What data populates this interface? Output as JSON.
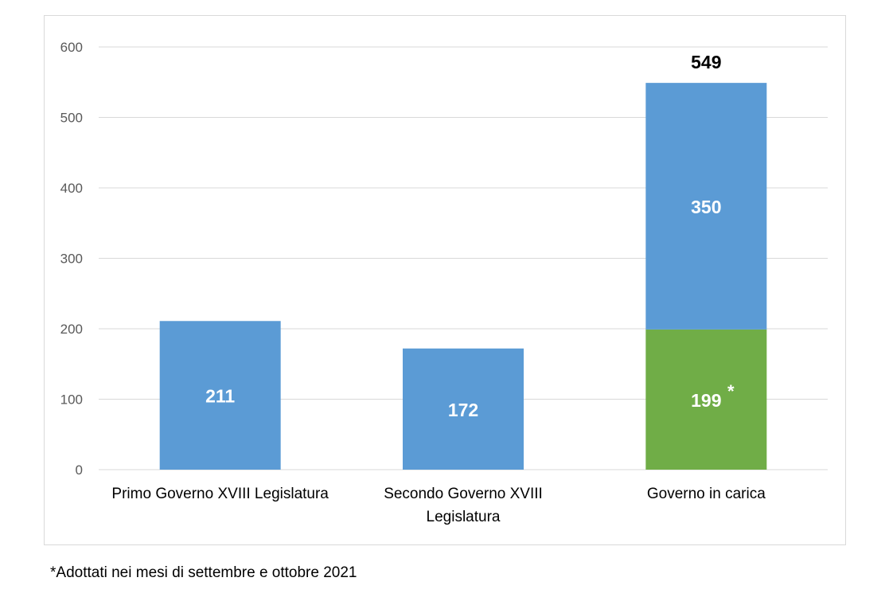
{
  "chart_data": {
    "type": "bar",
    "stacked": true,
    "title": "",
    "xlabel": "",
    "ylabel": "",
    "ylim": [
      0,
      600
    ],
    "yticks": [
      0,
      100,
      200,
      300,
      400,
      500,
      600
    ],
    "grid": true,
    "legend": "none",
    "categories": [
      [
        "Primo Governo XVIII Legislatura"
      ],
      [
        "Secondo Governo XVIII",
        "Legislatura"
      ],
      [
        "Governo in carica"
      ]
    ],
    "series": [
      {
        "color": "#5b9bd5",
        "values": [
          211,
          172,
          350
        ],
        "stack_order": [
          0,
          0,
          1
        ]
      },
      {
        "color": "#70ad47",
        "values": [
          null,
          null,
          199
        ],
        "stack_order": [
          null,
          null,
          0
        ],
        "labels_suffix": [
          null,
          null,
          "*"
        ]
      }
    ],
    "totals": [
      null,
      null,
      549
    ]
  },
  "footnote": "*Adottati nei mesi di settembre e ottobre 2021",
  "colors": {
    "blue": "#5b9bd5",
    "green": "#70ad47",
    "grid": "#d9d9d9",
    "axis_text": "#595959"
  }
}
